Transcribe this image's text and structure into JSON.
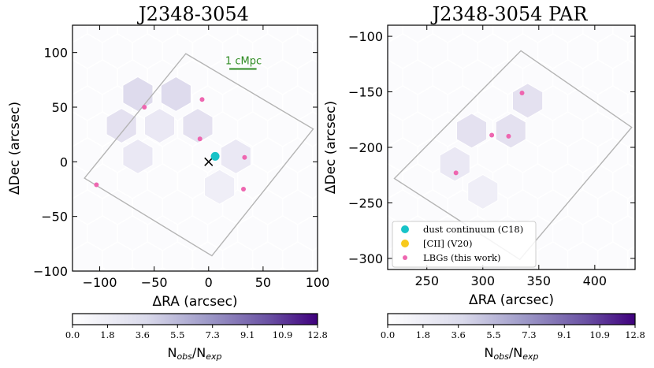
{
  "chart_data": [
    {
      "type": "scatter",
      "title": "J2348-3054",
      "xlabel": "ΔRA (arcsec)",
      "ylabel": "ΔDec (arcsec)",
      "xlim": [
        -125,
        100
      ],
      "ylim": [
        -100,
        125
      ],
      "xticks": [
        -100,
        -50,
        0,
        50,
        100
      ],
      "yticks": [
        -100,
        -50,
        0,
        50,
        100
      ],
      "xtick_labels": [
        "−100",
        "−50",
        "0",
        "50",
        "100"
      ],
      "ytick_labels": [
        "−100",
        "−50",
        "0",
        "50",
        "100"
      ],
      "annotation": {
        "text": "1 cMpc",
        "color": "#2e8b22"
      },
      "footprint_polygon": [
        [
          -21,
          99
        ],
        [
          96,
          30
        ],
        [
          3,
          -86
        ],
        [
          -114,
          -15
        ]
      ],
      "hexbins": [
        {
          "x": -65,
          "y": 62,
          "level": 0.6
        },
        {
          "x": -30,
          "y": 62,
          "level": 0.6
        },
        {
          "x": -80,
          "y": 33,
          "level": 0.5
        },
        {
          "x": -45,
          "y": 33,
          "level": 0.4
        },
        {
          "x": -10,
          "y": 33,
          "level": 0.5
        },
        {
          "x": -65,
          "y": 5,
          "level": 0.4
        },
        {
          "x": 25,
          "y": 5,
          "level": 0.4
        },
        {
          "x": 10,
          "y": -23,
          "level": 0.3
        }
      ],
      "series": [
        {
          "name": "dust continuum (C18)",
          "color": "#17c3c8",
          "points": [
            [
              6,
              5
            ]
          ]
        },
        {
          "name": "LBGs (this work)",
          "color": "#ee66b0",
          "points": [
            [
              -59,
              50
            ],
            [
              -6,
              57
            ],
            [
              -8,
              21
            ],
            [
              33,
              4
            ],
            [
              32,
              -25
            ],
            [
              -103,
              -21
            ]
          ]
        }
      ],
      "quasar_marker": {
        "x": 0,
        "y": 0,
        "symbol": "×"
      }
    },
    {
      "type": "scatter",
      "title": "J2348-3054 PAR",
      "xlabel": "ΔRA (arcsec)",
      "ylabel": "ΔDec (arcsec)",
      "xlim": [
        215,
        436
      ],
      "ylim": [
        -310,
        -90
      ],
      "xticks": [
        250,
        300,
        350,
        400
      ],
      "yticks": [
        -300,
        -250,
        -200,
        -150,
        -100
      ],
      "xtick_labels": [
        "250",
        "300",
        "350",
        "400"
      ],
      "ytick_labels": [
        "−300",
        "−250",
        "−200",
        "−150",
        "−100"
      ],
      "footprint_polygon": [
        [
          334,
          -113
        ],
        [
          433,
          -182
        ],
        [
          333,
          -301
        ],
        [
          221,
          -228
        ]
      ],
      "hexbins": [
        {
          "x": 290,
          "y": -185,
          "level": 0.5
        },
        {
          "x": 325,
          "y": -185,
          "level": 0.5
        },
        {
          "x": 340,
          "y": -158,
          "level": 0.5
        },
        {
          "x": 275,
          "y": -215,
          "level": 0.4
        },
        {
          "x": 300,
          "y": -240,
          "level": 0.3
        }
      ],
      "series": [
        {
          "name": "LBGs (this work)",
          "color": "#ee66b0",
          "points": [
            [
              335,
              -151
            ],
            [
              308,
              -189
            ],
            [
              323,
              -190
            ],
            [
              276,
              -223
            ]
          ]
        }
      ],
      "legend": {
        "location": "lower-left",
        "entries": [
          {
            "label": "dust continuum (C18)",
            "color": "#17c3c8"
          },
          {
            "label": "[CII] (V20)",
            "color": "#f7c91c"
          },
          {
            "label": "LBGs (this work)",
            "color": "#ee66b0"
          }
        ]
      }
    }
  ],
  "colorbar": {
    "label": "N_obs/N_exp",
    "label_main": "N",
    "label_sub1": "obs",
    "label_slash": "/N",
    "label_sub2": "exp",
    "ticks": [
      "0.0",
      "1.8",
      "3.6",
      "5.5",
      "7.3",
      "9.1",
      "10.9",
      "12.8"
    ],
    "range": [
      0.0,
      12.8
    ],
    "color_low": "#ffffff",
    "color_high": "#3f007d"
  }
}
